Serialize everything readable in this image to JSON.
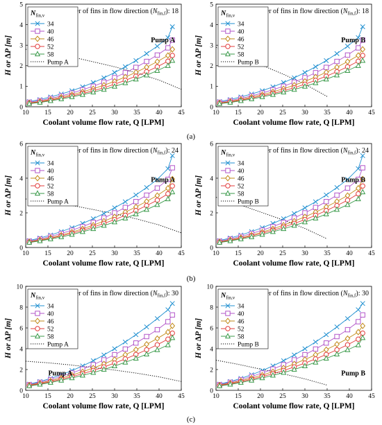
{
  "figure": {
    "x_label": "Coolant volume flow rate, Q [LPM]",
    "y_label": "H or ∆P [m]",
    "legend_title": "N",
    "legend_title_sub": "fin,v",
    "fins_note_prefix": "Number of fins in flow direction (",
    "fins_note_var": "N",
    "fins_note_sub": "fin,f",
    "fins_note_suffix": "):",
    "row_labels": [
      "(a)",
      "(b)",
      "(c)"
    ]
  },
  "series_styles": [
    {
      "name": "34",
      "color": "#1f8fd0",
      "marker": "x"
    },
    {
      "name": "40",
      "color": "#b256c9",
      "marker": "square"
    },
    {
      "name": "46",
      "color": "#c28a1a",
      "marker": "diamond"
    },
    {
      "name": "52",
      "color": "#e23b3b",
      "marker": "circle"
    },
    {
      "name": "58",
      "color": "#3a9a4a",
      "marker": "triangle"
    }
  ],
  "chart_data": [
    {
      "type": "line",
      "pump": "Pump A",
      "fins_in_flow_direction": 18,
      "xlim": [
        10,
        45
      ],
      "ylim": [
        0,
        5
      ],
      "xticks": [
        10,
        15,
        20,
        25,
        30,
        35,
        40,
        45
      ],
      "yticks": [
        0,
        1,
        2,
        3,
        4,
        5
      ],
      "x": [
        10.8,
        13.2,
        15.6,
        18.0,
        20.4,
        22.8,
        25.2,
        27.6,
        30.0,
        32.4,
        34.8,
        37.2,
        39.6,
        42.0,
        43.0
      ],
      "series": [
        {
          "name": "34",
          "values": [
            0.25,
            0.35,
            0.48,
            0.62,
            0.78,
            0.97,
            1.18,
            1.41,
            1.67,
            1.95,
            2.25,
            2.59,
            2.95,
            3.37,
            3.9
          ]
        },
        {
          "name": "40",
          "values": [
            0.22,
            0.3,
            0.41,
            0.53,
            0.67,
            0.83,
            1.0,
            1.2,
            1.42,
            1.66,
            1.92,
            2.21,
            2.52,
            2.87,
            3.25
          ]
        },
        {
          "name": "46",
          "values": [
            0.19,
            0.26,
            0.36,
            0.47,
            0.59,
            0.73,
            0.88,
            1.05,
            1.24,
            1.45,
            1.68,
            1.93,
            2.2,
            2.5,
            2.8
          ]
        },
        {
          "name": "52",
          "values": [
            0.17,
            0.24,
            0.32,
            0.42,
            0.53,
            0.65,
            0.78,
            0.93,
            1.1,
            1.29,
            1.49,
            1.71,
            1.95,
            2.22,
            2.5
          ]
        },
        {
          "name": "58",
          "values": [
            0.15,
            0.21,
            0.29,
            0.38,
            0.48,
            0.59,
            0.71,
            0.84,
            0.99,
            1.16,
            1.34,
            1.54,
            1.76,
            2.0,
            2.25
          ]
        }
      ],
      "pump_curve": {
        "name": "Pump A",
        "x": [
          10,
          15,
          20,
          25,
          30,
          35,
          40,
          45
        ],
        "values": [
          2.8,
          2.65,
          2.45,
          2.2,
          1.95,
          1.65,
          1.3,
          0.85
        ]
      }
    },
    {
      "type": "line",
      "pump": "Pump B",
      "fins_in_flow_direction": 18,
      "xlim": [
        10,
        45
      ],
      "ylim": [
        0,
        5
      ],
      "xticks": [
        10,
        15,
        20,
        25,
        30,
        35,
        40,
        45
      ],
      "yticks": [
        0,
        1,
        2,
        3,
        4,
        5
      ],
      "x": [
        10.8,
        13.2,
        15.6,
        18.0,
        20.4,
        22.8,
        25.2,
        27.6,
        30.0,
        32.4,
        34.8,
        37.2,
        39.6,
        42.0,
        43.0
      ],
      "series": [
        {
          "name": "34",
          "values": [
            0.25,
            0.35,
            0.48,
            0.62,
            0.78,
            0.97,
            1.18,
            1.41,
            1.67,
            1.95,
            2.25,
            2.59,
            2.95,
            3.37,
            3.9
          ]
        },
        {
          "name": "40",
          "values": [
            0.22,
            0.3,
            0.41,
            0.53,
            0.67,
            0.83,
            1.0,
            1.2,
            1.42,
            1.66,
            1.92,
            2.21,
            2.52,
            2.87,
            3.25
          ]
        },
        {
          "name": "46",
          "values": [
            0.19,
            0.26,
            0.36,
            0.47,
            0.59,
            0.73,
            0.88,
            1.05,
            1.24,
            1.45,
            1.68,
            1.93,
            2.2,
            2.5,
            2.8
          ]
        },
        {
          "name": "52",
          "values": [
            0.17,
            0.24,
            0.32,
            0.42,
            0.53,
            0.65,
            0.78,
            0.93,
            1.1,
            1.29,
            1.49,
            1.71,
            1.95,
            2.22,
            2.5
          ]
        },
        {
          "name": "58",
          "values": [
            0.15,
            0.21,
            0.29,
            0.38,
            0.48,
            0.59,
            0.71,
            0.84,
            0.99,
            1.16,
            1.34,
            1.54,
            1.76,
            2.0,
            2.25
          ]
        }
      ],
      "pump_curve": {
        "name": "Pump B",
        "x": [
          10,
          15,
          20,
          25,
          30,
          35
        ],
        "values": [
          2.9,
          2.5,
          2.05,
          1.6,
          1.1,
          0.5
        ]
      }
    },
    {
      "type": "line",
      "pump": "Pump A",
      "fins_in_flow_direction": 24,
      "xlim": [
        10,
        45
      ],
      "ylim": [
        0,
        6
      ],
      "xticks": [
        10,
        15,
        20,
        25,
        30,
        35,
        40,
        45
      ],
      "yticks": [
        0,
        2,
        4,
        6
      ],
      "x": [
        10.8,
        13.2,
        15.6,
        18.0,
        20.4,
        22.8,
        25.2,
        27.6,
        30.0,
        32.4,
        34.8,
        37.2,
        39.6,
        42.0,
        43.0
      ],
      "series": [
        {
          "name": "34",
          "values": [
            0.4,
            0.55,
            0.72,
            0.92,
            1.14,
            1.39,
            1.66,
            1.96,
            2.29,
            2.64,
            3.03,
            3.46,
            3.93,
            4.55,
            5.3
          ]
        },
        {
          "name": "40",
          "values": [
            0.36,
            0.49,
            0.64,
            0.81,
            1.0,
            1.21,
            1.45,
            1.71,
            2.0,
            2.31,
            2.65,
            3.02,
            3.43,
            3.93,
            4.6
          ]
        },
        {
          "name": "46",
          "values": [
            0.33,
            0.44,
            0.57,
            0.72,
            0.89,
            1.08,
            1.29,
            1.52,
            1.77,
            2.04,
            2.34,
            2.66,
            3.0,
            3.42,
            3.95
          ]
        },
        {
          "name": "52",
          "values": [
            0.31,
            0.41,
            0.53,
            0.67,
            0.82,
            0.99,
            1.18,
            1.39,
            1.61,
            1.86,
            2.13,
            2.42,
            2.73,
            3.1,
            3.55
          ]
        },
        {
          "name": "58",
          "values": [
            0.29,
            0.38,
            0.49,
            0.61,
            0.75,
            0.91,
            1.08,
            1.27,
            1.47,
            1.69,
            1.93,
            2.19,
            2.47,
            2.8,
            3.2
          ]
        }
      ],
      "pump_curve": {
        "name": "Pump A",
        "x": [
          10,
          15,
          20,
          25,
          30,
          35,
          40,
          45
        ],
        "values": [
          2.8,
          2.65,
          2.45,
          2.2,
          1.95,
          1.65,
          1.3,
          0.85
        ]
      }
    },
    {
      "type": "line",
      "pump": "Pump B",
      "fins_in_flow_direction": 24,
      "xlim": [
        10,
        45
      ],
      "ylim": [
        0,
        6
      ],
      "xticks": [
        10,
        15,
        20,
        25,
        30,
        35,
        40,
        45
      ],
      "yticks": [
        0,
        2,
        4,
        6
      ],
      "x": [
        10.8,
        13.2,
        15.6,
        18.0,
        20.4,
        22.8,
        25.2,
        27.6,
        30.0,
        32.4,
        34.8,
        37.2,
        39.6,
        42.0,
        43.0
      ],
      "series": [
        {
          "name": "34",
          "values": [
            0.4,
            0.55,
            0.72,
            0.92,
            1.14,
            1.39,
            1.66,
            1.96,
            2.29,
            2.64,
            3.03,
            3.46,
            3.93,
            4.55,
            5.3
          ]
        },
        {
          "name": "40",
          "values": [
            0.36,
            0.49,
            0.64,
            0.81,
            1.0,
            1.21,
            1.45,
            1.71,
            2.0,
            2.31,
            2.65,
            3.02,
            3.43,
            3.93,
            4.6
          ]
        },
        {
          "name": "46",
          "values": [
            0.33,
            0.44,
            0.57,
            0.72,
            0.89,
            1.08,
            1.29,
            1.52,
            1.77,
            2.04,
            2.34,
            2.66,
            3.0,
            3.42,
            3.95
          ]
        },
        {
          "name": "52",
          "values": [
            0.31,
            0.41,
            0.53,
            0.67,
            0.82,
            0.99,
            1.18,
            1.39,
            1.61,
            1.86,
            2.13,
            2.42,
            2.73,
            3.1,
            3.55
          ]
        },
        {
          "name": "58",
          "values": [
            0.29,
            0.38,
            0.49,
            0.61,
            0.75,
            0.91,
            1.08,
            1.27,
            1.47,
            1.69,
            1.93,
            2.19,
            2.47,
            2.8,
            3.2
          ]
        }
      ],
      "pump_curve": {
        "name": "Pump B",
        "x": [
          10,
          15,
          20,
          25,
          30,
          35
        ],
        "values": [
          2.9,
          2.5,
          2.05,
          1.6,
          1.1,
          0.5
        ]
      }
    },
    {
      "type": "line",
      "pump": "Pump A",
      "fins_in_flow_direction": 30,
      "xlim": [
        10,
        45
      ],
      "ylim": [
        0,
        10
      ],
      "xticks": [
        10,
        15,
        20,
        25,
        30,
        35,
        40,
        45
      ],
      "yticks": [
        0,
        2,
        4,
        6,
        8,
        10
      ],
      "x": [
        10.8,
        13.2,
        15.6,
        18.0,
        20.4,
        22.8,
        25.2,
        27.6,
        30.0,
        32.4,
        34.8,
        37.2,
        39.6,
        42.0,
        43.0
      ],
      "series": [
        {
          "name": "34",
          "values": [
            0.6,
            0.85,
            1.15,
            1.5,
            1.9,
            2.35,
            2.85,
            3.4,
            4.0,
            4.65,
            5.35,
            6.1,
            6.9,
            7.75,
            8.35
          ]
        },
        {
          "name": "40",
          "values": [
            0.55,
            0.77,
            1.03,
            1.33,
            1.67,
            2.05,
            2.47,
            2.93,
            3.43,
            3.97,
            4.55,
            5.17,
            5.83,
            6.6,
            7.25
          ]
        },
        {
          "name": "46",
          "values": [
            0.5,
            0.69,
            0.92,
            1.18,
            1.47,
            1.79,
            2.15,
            2.54,
            2.96,
            3.42,
            3.91,
            4.43,
            4.98,
            5.6,
            6.2
          ]
        },
        {
          "name": "52",
          "values": [
            0.46,
            0.63,
            0.83,
            1.06,
            1.32,
            1.6,
            1.91,
            2.25,
            2.62,
            3.02,
            3.45,
            3.9,
            4.38,
            4.92,
            5.5
          ]
        },
        {
          "name": "58",
          "values": [
            0.42,
            0.57,
            0.75,
            0.96,
            1.19,
            1.44,
            1.71,
            2.01,
            2.34,
            2.69,
            3.07,
            3.47,
            3.89,
            4.36,
            5.05
          ]
        }
      ],
      "pump_curve": {
        "name": "Pump A",
        "x": [
          10,
          15,
          20,
          25,
          30,
          35,
          40,
          45
        ],
        "values": [
          2.8,
          2.65,
          2.45,
          2.2,
          1.95,
          1.65,
          1.3,
          0.85
        ]
      }
    },
    {
      "type": "line",
      "pump": "Pump B",
      "fins_in_flow_direction": 30,
      "xlim": [
        10,
        45
      ],
      "ylim": [
        0,
        10
      ],
      "xticks": [
        10,
        15,
        20,
        25,
        30,
        35,
        40,
        45
      ],
      "yticks": [
        0,
        2,
        4,
        6,
        8,
        10
      ],
      "x": [
        10.8,
        13.2,
        15.6,
        18.0,
        20.4,
        22.8,
        25.2,
        27.6,
        30.0,
        32.4,
        34.8,
        37.2,
        39.6,
        42.0,
        43.0
      ],
      "series": [
        {
          "name": "34",
          "values": [
            0.6,
            0.85,
            1.15,
            1.5,
            1.9,
            2.35,
            2.85,
            3.4,
            4.0,
            4.65,
            5.35,
            6.1,
            6.9,
            7.75,
            8.35
          ]
        },
        {
          "name": "40",
          "values": [
            0.55,
            0.77,
            1.03,
            1.33,
            1.67,
            2.05,
            2.47,
            2.93,
            3.43,
            3.97,
            4.55,
            5.17,
            5.83,
            6.6,
            7.25
          ]
        },
        {
          "name": "46",
          "values": [
            0.5,
            0.69,
            0.92,
            1.18,
            1.47,
            1.79,
            2.15,
            2.54,
            2.96,
            3.42,
            3.91,
            4.43,
            4.98,
            5.6,
            6.2
          ]
        },
        {
          "name": "52",
          "values": [
            0.46,
            0.63,
            0.83,
            1.06,
            1.32,
            1.6,
            1.91,
            2.25,
            2.62,
            3.02,
            3.45,
            3.9,
            4.38,
            4.92,
            5.5
          ]
        },
        {
          "name": "58",
          "values": [
            0.42,
            0.57,
            0.75,
            0.96,
            1.19,
            1.44,
            1.71,
            2.01,
            2.34,
            2.69,
            3.07,
            3.47,
            3.89,
            4.36,
            5.05
          ]
        }
      ],
      "pump_curve": {
        "name": "Pump B",
        "x": [
          10,
          15,
          20,
          25,
          30,
          35
        ],
        "values": [
          2.9,
          2.5,
          2.05,
          1.6,
          1.1,
          0.5
        ]
      }
    }
  ]
}
